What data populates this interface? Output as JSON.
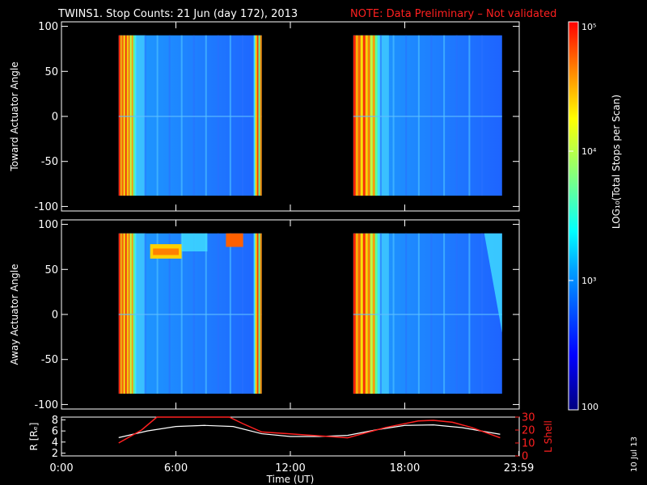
{
  "title": {
    "main": "TWINS1. Stop Counts: 21 Jun (day 172), 2013",
    "note": "NOTE: Data Preliminary – Not validated"
  },
  "date_stamp": "10 Jul 13",
  "colors": {
    "background": "#000000",
    "axes": "#ffffff",
    "note": "#ff2020",
    "l_shell": "#ff2020",
    "radius": "#ffffff"
  },
  "chart_data": [
    {
      "type": "heatmap",
      "name": "toward",
      "ylabel": "Toward Actuator Angle",
      "ylim": [
        -105,
        105
      ],
      "yticks": [
        100,
        50,
        0,
        -50,
        -100
      ],
      "xlim": [
        0,
        24
      ],
      "scans": [
        {
          "start_h": 3.0,
          "end_h": 10.5
        },
        {
          "start_h": 15.3,
          "end_h": 23.1
        }
      ],
      "angle_range": [
        -88,
        90
      ]
    },
    {
      "type": "heatmap",
      "name": "away",
      "ylabel": "Away Actuator Angle",
      "ylim": [
        -105,
        105
      ],
      "yticks": [
        100,
        50,
        0,
        -50,
        -100
      ],
      "xlim": [
        0,
        24
      ],
      "scans": [
        {
          "start_h": 3.0,
          "end_h": 10.5
        },
        {
          "start_h": 15.3,
          "end_h": 23.1
        }
      ],
      "angle_range": [
        -88,
        90
      ]
    },
    {
      "type": "line",
      "name": "orbit",
      "xlabel": "Time (UT)",
      "xticks": [
        "0:00",
        "6:00",
        "12:00",
        "18:00",
        "23:59"
      ],
      "xtick_values": [
        0,
        6,
        12,
        18,
        23.98
      ],
      "xlim": [
        0,
        24
      ],
      "left_axis": {
        "label": "R [Rₑ]",
        "ylim": [
          1.5,
          8.5
        ],
        "ticks": [
          8,
          6,
          4,
          2
        ]
      },
      "right_axis": {
        "label": "L Shell",
        "ylim": [
          0,
          30
        ],
        "ticks": [
          30,
          20,
          10,
          0
        ]
      },
      "series": [
        {
          "name": "R",
          "axis": "left",
          "x": [
            3.0,
            4.5,
            6.0,
            7.5,
            9.0,
            10.5,
            12.0,
            13.5,
            15.0,
            16.5,
            18.0,
            19.5,
            21.0,
            22.0,
            23.0
          ],
          "y": [
            4.8,
            6.0,
            6.8,
            7.0,
            6.8,
            5.5,
            5.0,
            5.0,
            5.2,
            6.2,
            7.0,
            7.1,
            6.6,
            6.0,
            5.4
          ]
        },
        {
          "name": "L Shell",
          "axis": "right",
          "x": [
            3.0,
            4.2,
            5.0,
            8.8,
            9.5,
            10.5,
            12.0,
            15.0,
            17.0,
            18.7,
            19.5,
            20.5,
            21.5,
            23.0
          ],
          "y": [
            10.0,
            20.0,
            30.0,
            30.0,
            25.0,
            18.5,
            17.0,
            14.0,
            22.0,
            27.0,
            27.5,
            26.0,
            22.0,
            14.0
          ]
        }
      ]
    }
  ],
  "colorbar": {
    "label": "LOG₁₀(Total Stops per Scan)",
    "tick_labels": [
      "10⁵",
      "10⁴",
      "10³",
      "100"
    ],
    "log_values": [
      5,
      4,
      3,
      2
    ]
  }
}
